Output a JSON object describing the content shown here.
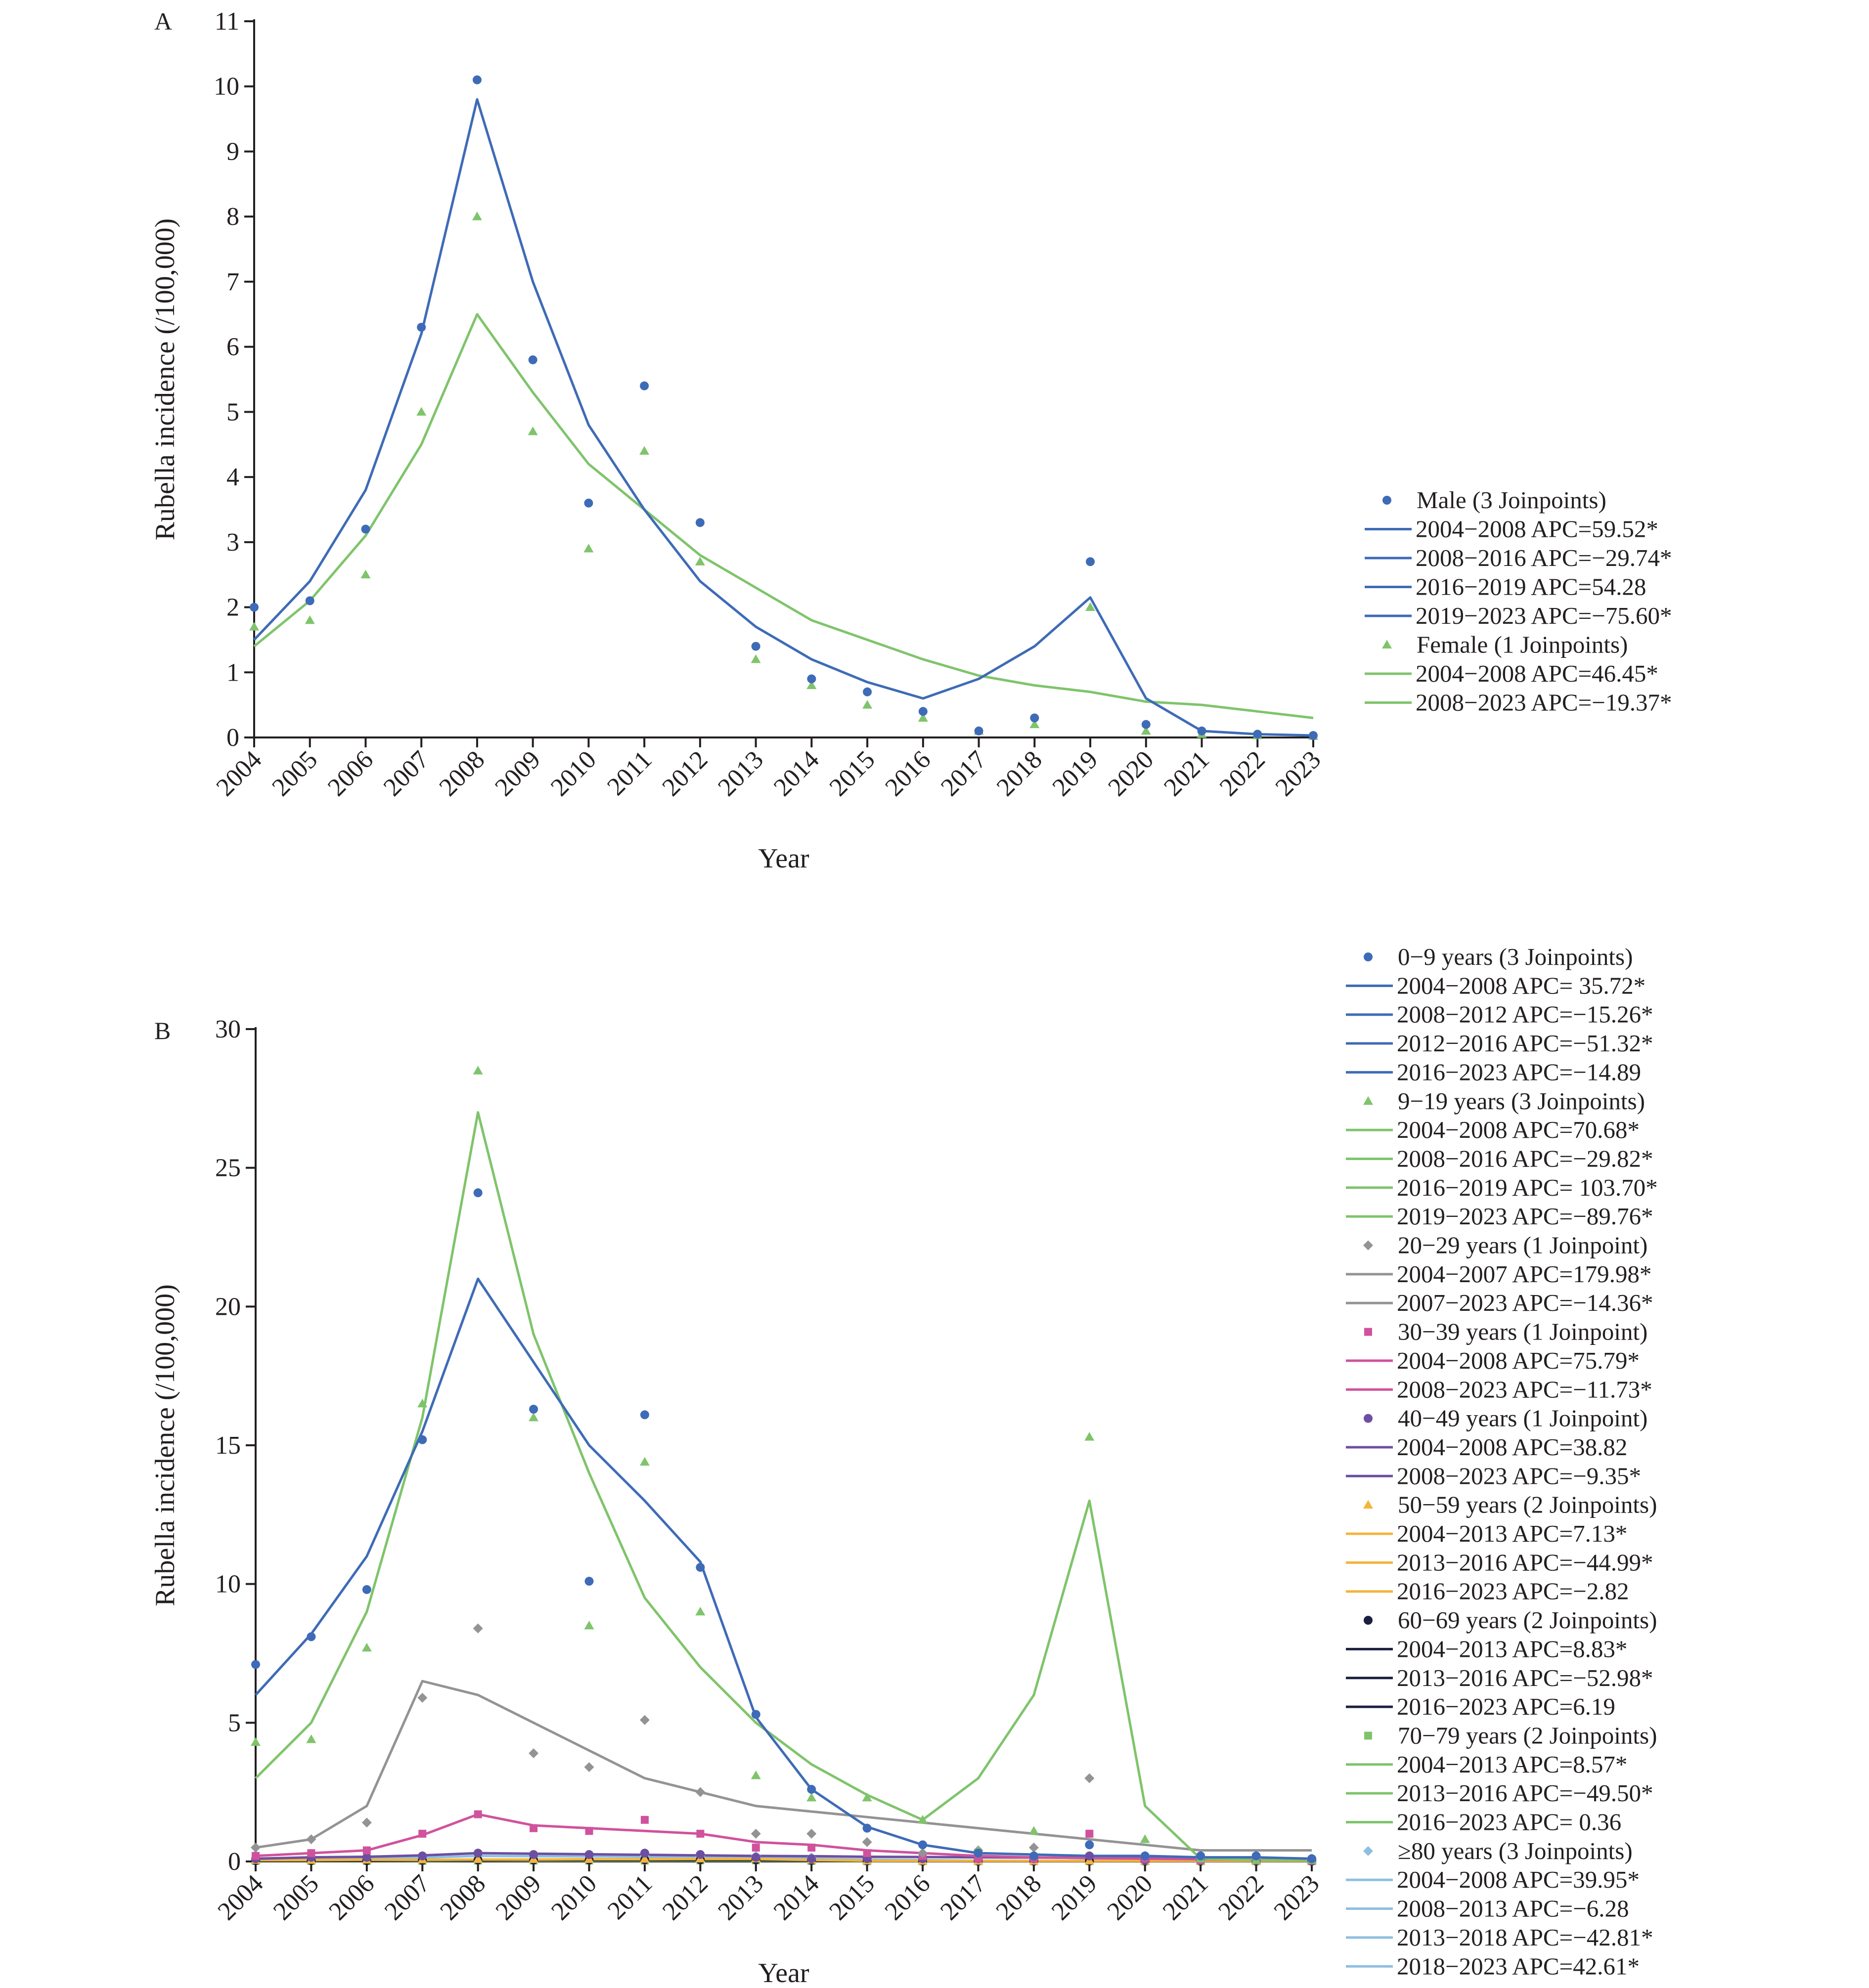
{
  "chart_data": [
    {
      "panel": "A",
      "type": "scatter",
      "xlabel": "Year",
      "ylabel": "Rubella incidence (/100,000)",
      "ylim": [
        0,
        11
      ],
      "yticks": [
        0,
        1,
        2,
        3,
        4,
        5,
        6,
        7,
        8,
        9,
        10,
        11
      ],
      "x": [
        "2004",
        "2005",
        "2006",
        "2007",
        "2008",
        "2009",
        "2010",
        "2011",
        "2012",
        "2013",
        "2014",
        "2015",
        "2016",
        "2017",
        "2018",
        "2019",
        "2020",
        "2021",
        "2022",
        "2023"
      ],
      "legend_position": "right",
      "series": [
        {
          "name": "Male (3 Joinpoints)",
          "marker": "circle",
          "color": "#3e6bb7",
          "values": [
            2.0,
            2.1,
            3.2,
            6.3,
            10.1,
            5.8,
            3.6,
            5.4,
            3.3,
            1.4,
            0.9,
            0.7,
            0.4,
            0.1,
            0.3,
            2.7,
            0.2,
            0.1,
            0.05,
            0.03
          ],
          "fit": [
            1.5,
            2.4,
            3.8,
            6.2,
            9.8,
            7.0,
            4.8,
            3.5,
            2.4,
            1.7,
            1.2,
            0.85,
            0.6,
            0.9,
            1.4,
            2.15,
            0.6,
            0.1,
            0.05,
            0.03
          ],
          "segments": [
            "2004−2008 APC=59.52*",
            "2008−2016 APC=−29.74*",
            "2016−2019 APC=54.28",
            "2019−2023 APC=−75.60*"
          ]
        },
        {
          "name": "Female (1 Joinpoints)",
          "marker": "triangle",
          "color": "#7fc46b",
          "values": [
            1.7,
            1.8,
            2.5,
            5.0,
            8.0,
            4.7,
            2.9,
            4.4,
            2.7,
            1.2,
            0.8,
            0.5,
            0.3,
            0.1,
            0.2,
            2.0,
            0.1,
            0.05,
            0.03,
            0.02
          ],
          "fit": [
            1.4,
            2.1,
            3.1,
            4.5,
            6.5,
            5.3,
            4.2,
            3.5,
            2.8,
            2.3,
            1.8,
            1.5,
            1.2,
            0.95,
            0.8,
            0.7,
            0.55,
            0.5,
            0.4,
            0.3
          ],
          "segments": [
            "2004−2008 APC=46.45*",
            "2008−2023 APC=−19.37*"
          ]
        }
      ]
    },
    {
      "panel": "B",
      "type": "scatter",
      "xlabel": "Year",
      "ylabel": "Rubella incidence (/100,000)",
      "ylim": [
        0,
        30
      ],
      "yticks": [
        0,
        5,
        10,
        15,
        20,
        25,
        30
      ],
      "x": [
        "2004",
        "2005",
        "2006",
        "2007",
        "2008",
        "2009",
        "2010",
        "2011",
        "2012",
        "2013",
        "2014",
        "2015",
        "2016",
        "2017",
        "2018",
        "2019",
        "2020",
        "2021",
        "2022",
        "2023"
      ],
      "legend_position": "right",
      "series": [
        {
          "name": "0−9 years (3 Joinpoints)",
          "marker": "circle",
          "color": "#3e6bb7",
          "values": [
            7.1,
            8.1,
            9.8,
            15.2,
            24.1,
            16.3,
            10.1,
            16.1,
            10.6,
            5.3,
            2.6,
            1.2,
            0.6,
            0.3,
            0.2,
            0.6,
            0.2,
            0.2,
            0.2,
            0.1
          ],
          "fit": [
            6.0,
            8.2,
            11.0,
            15.5,
            21.0,
            18.0,
            15.0,
            13.0,
            10.8,
            5.2,
            2.6,
            1.25,
            0.6,
            0.3,
            0.25,
            0.2,
            0.2,
            0.15,
            0.15,
            0.1
          ],
          "segments": [
            "2004−2008 APC= 35.72*",
            "2008−2012 APC=−15.26*",
            "2012−2016 APC=−51.32*",
            "2016−2023 APC=−14.89"
          ]
        },
        {
          "name": "9−19 years (3 Joinpoints)",
          "marker": "triangle",
          "color": "#7fc46b",
          "values": [
            4.3,
            4.4,
            7.7,
            16.5,
            28.5,
            16.0,
            8.5,
            14.4,
            9.0,
            3.1,
            2.3,
            2.3,
            1.5,
            0.4,
            1.1,
            15.3,
            0.8,
            0.1,
            0.05,
            0.05
          ],
          "fit": [
            3.0,
            5.0,
            9.0,
            16.0,
            27.0,
            19.0,
            14.0,
            9.5,
            7.0,
            5.0,
            3.5,
            2.4,
            1.5,
            3.0,
            6.0,
            13.0,
            2.0,
            0.1,
            0.05,
            0.05
          ],
          "segments": [
            "2004−2008 APC=70.68*",
            "2008−2016 APC=−29.82*",
            "2016−2019 APC= 103.70*",
            "2019−2023 APC=−89.76*"
          ]
        },
        {
          "name": "20−29 years (1 Joinpoint)",
          "marker": "diamond",
          "color": "#939393",
          "values": [
            0.5,
            0.8,
            1.4,
            5.9,
            8.4,
            3.9,
            3.4,
            5.1,
            2.5,
            1.0,
            1.0,
            0.7,
            0.3,
            0.4,
            0.5,
            3.0,
            0.2,
            0.1,
            0.1,
            0.1
          ],
          "fit": [
            0.5,
            0.8,
            2.0,
            6.5,
            6.0,
            5.0,
            4.0,
            3.0,
            2.5,
            2.0,
            1.8,
            1.6,
            1.4,
            1.2,
            1.0,
            0.8,
            0.6,
            0.4,
            0.4,
            0.4
          ],
          "segments": [
            "2004−2007 APC=179.98*",
            "2007−2023 APC=−14.36*"
          ]
        },
        {
          "name": "30−39 years (1 Joinpoint)",
          "marker": "square",
          "color": "#d0529d",
          "values": [
            0.2,
            0.3,
            0.4,
            1.0,
            1.7,
            1.2,
            1.1,
            1.5,
            1.0,
            0.5,
            0.5,
            0.3,
            0.2,
            0.1,
            0.1,
            1.0,
            0.1,
            0.05,
            0.05,
            0.03
          ],
          "fit": [
            0.2,
            0.3,
            0.4,
            0.95,
            1.7,
            1.3,
            1.2,
            1.1,
            1.0,
            0.7,
            0.6,
            0.4,
            0.3,
            0.2,
            0.15,
            0.12,
            0.1,
            0.08,
            0.06,
            0.05
          ],
          "segments": [
            "2004−2008 APC=75.79*",
            "2008−2023 APC=−11.73*"
          ]
        },
        {
          "name": "40−49 years (1 Joinpoint)",
          "marker": "circle",
          "color": "#6d4fa1",
          "values": [
            0.1,
            0.15,
            0.15,
            0.2,
            0.3,
            0.25,
            0.25,
            0.3,
            0.25,
            0.15,
            0.1,
            0.1,
            0.1,
            0.1,
            0.1,
            0.2,
            0.05,
            0.05,
            0.05,
            0.03
          ],
          "fit": [
            0.1,
            0.15,
            0.17,
            0.22,
            0.3,
            0.28,
            0.26,
            0.24,
            0.22,
            0.2,
            0.19,
            0.17,
            0.16,
            0.15,
            0.14,
            0.13,
            0.12,
            0.11,
            0.1,
            0.09
          ],
          "segments": [
            "2004−2008 APC=38.82",
            "2008−2023 APC=−9.35*"
          ]
        },
        {
          "name": "50−59 years (2 Joinpoints)",
          "marker": "triangle",
          "color": "#f4b43c",
          "values": [
            0.05,
            0.05,
            0.06,
            0.07,
            0.08,
            0.08,
            0.08,
            0.09,
            0.1,
            0.1,
            0.06,
            0.03,
            0.02,
            0.02,
            0.02,
            0.03,
            0.02,
            0.02,
            0.02,
            0.02
          ],
          "fit": [
            0.05,
            0.05,
            0.06,
            0.06,
            0.07,
            0.07,
            0.08,
            0.08,
            0.09,
            0.09,
            0.05,
            0.03,
            0.02,
            0.02,
            0.02,
            0.02,
            0.02,
            0.02,
            0.02,
            0.02
          ],
          "segments": [
            "2004−2013 APC=7.13*",
            "2013−2016 APC=−44.99*",
            "2016−2023 APC=−2.82"
          ]
        },
        {
          "name": "60−69 years (2 Joinpoints)",
          "marker": "circle",
          "color": "#1b1f3f",
          "values": [
            0.03,
            0.03,
            0.03,
            0.04,
            0.05,
            0.05,
            0.05,
            0.06,
            0.06,
            0.06,
            0.04,
            0.02,
            0.01,
            0.01,
            0.01,
            0.02,
            0.01,
            0.01,
            0.01,
            0.01
          ],
          "fit": [
            0.03,
            0.03,
            0.03,
            0.04,
            0.04,
            0.05,
            0.05,
            0.05,
            0.06,
            0.06,
            0.03,
            0.02,
            0.01,
            0.01,
            0.01,
            0.01,
            0.01,
            0.01,
            0.01,
            0.01
          ],
          "segments": [
            "2004−2013 APC=8.83*",
            "2013−2016 APC=−52.98*",
            "2016−2023 APC=6.19"
          ]
        },
        {
          "name": "70−79 years (2 Joinpoints)",
          "marker": "square",
          "color": "#7fc46b",
          "values": [
            0.02,
            0.02,
            0.02,
            0.02,
            0.03,
            0.03,
            0.03,
            0.03,
            0.04,
            0.04,
            0.02,
            0.01,
            0.01,
            0.01,
            0.01,
            0.01,
            0.01,
            0.01,
            0.01,
            0.01
          ],
          "fit": [
            0.02,
            0.02,
            0.02,
            0.02,
            0.03,
            0.03,
            0.03,
            0.03,
            0.04,
            0.04,
            0.02,
            0.01,
            0.01,
            0.01,
            0.01,
            0.01,
            0.01,
            0.01,
            0.01,
            0.01
          ],
          "segments": [
            "2004−2013 APC=8.57*",
            "2013−2016 APC=−49.50*",
            "2016−2023 APC= 0.36"
          ]
        },
        {
          "name": "≥80 years (3 Joinpoints)",
          "marker": "diamond",
          "color": "#8fbfe0",
          "values": [
            0.05,
            0.05,
            0.08,
            0.12,
            0.2,
            0.2,
            0.2,
            0.2,
            0.2,
            0.2,
            0.15,
            0.1,
            0.05,
            0.03,
            0.02,
            0.03,
            0.03,
            0.04,
            0.05,
            0.05
          ],
          "fit": [
            0.05,
            0.07,
            0.1,
            0.14,
            0.2,
            0.19,
            0.18,
            0.17,
            0.16,
            0.15,
            0.1,
            0.07,
            0.05,
            0.03,
            0.02,
            0.03,
            0.04,
            0.05,
            0.05,
            0.06
          ],
          "segments": [
            "2004−2008 APC=39.95*",
            "2008−2013 APC=−6.28",
            "2013−2018 APC=−42.81*",
            "2018−2023 APC=42.61*"
          ]
        }
      ]
    }
  ]
}
